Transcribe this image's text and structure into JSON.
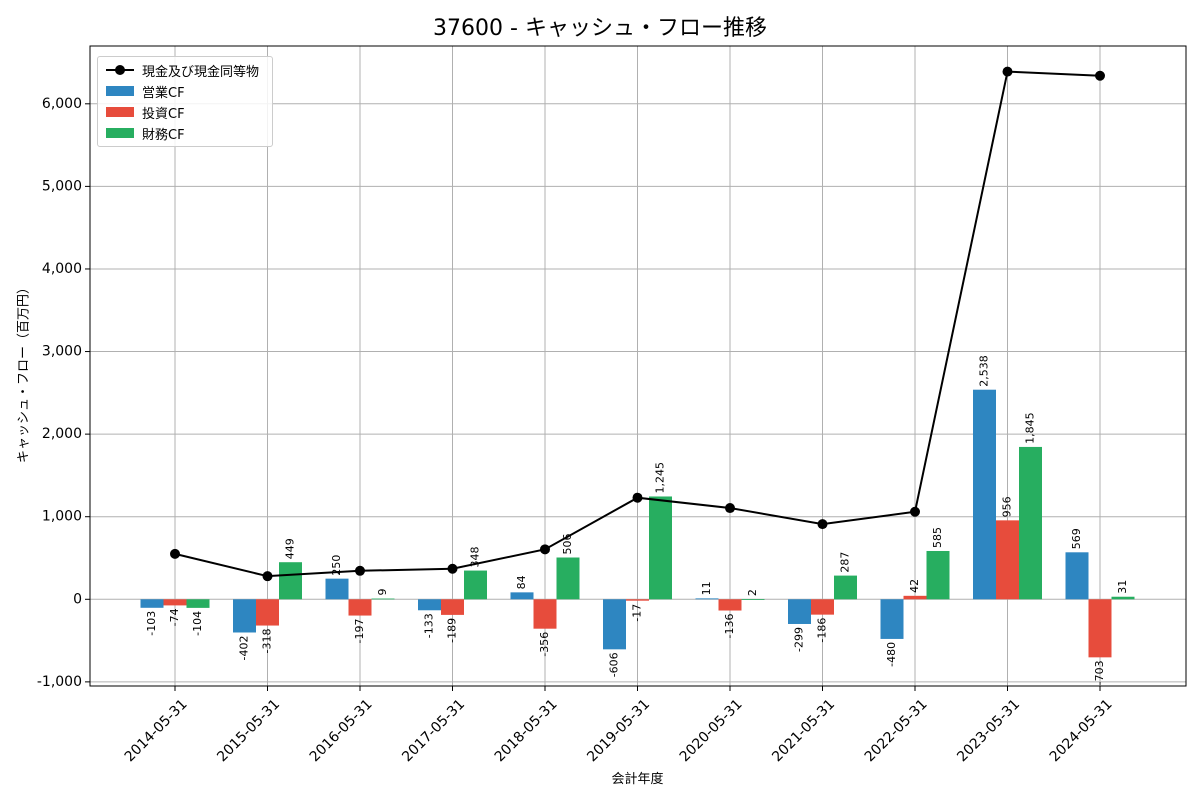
{
  "chart_data": {
    "type": "bar",
    "title": "37600 - キャッシュ・フロー推移",
    "xlabel": "会計年度",
    "ylabel": "キャッシュ・フロー（百万円）",
    "categories": [
      "2014-05-31",
      "2015-05-31",
      "2016-05-31",
      "2017-05-31",
      "2018-05-31",
      "2019-05-31",
      "2020-05-31",
      "2021-05-31",
      "2022-05-31",
      "2023-05-31",
      "2024-05-31"
    ],
    "ylim": [
      -1050,
      6700
    ],
    "yticks": [
      -1000,
      0,
      1000,
      2000,
      3000,
      4000,
      5000,
      6000
    ],
    "ytick_labels": [
      "-1,000",
      "0",
      "1,000",
      "2,000",
      "3,000",
      "4,000",
      "5,000",
      "6,000"
    ],
    "grid": true,
    "legend_position": "top-left",
    "series": [
      {
        "name": "営業CF",
        "kind": "bar",
        "color": "#2e86c1",
        "values": [
          -103,
          -402,
          250,
          -133,
          84,
          -606,
          11,
          -299,
          -480,
          2538,
          569
        ],
        "labels": [
          "-103",
          "-402",
          "250",
          "-133",
          "84",
          "-606",
          "11",
          "-299",
          "-480",
          "2,538",
          "569"
        ]
      },
      {
        "name": "投資CF",
        "kind": "bar",
        "color": "#e74c3c",
        "values": [
          -74,
          -318,
          -197,
          -189,
          -356,
          -17,
          -136,
          -186,
          42,
          956,
          -703
        ],
        "labels": [
          "-74",
          "-318",
          "-197",
          "-189",
          "-356",
          "-17",
          "-136",
          "-186",
          "42",
          "956",
          "-703"
        ]
      },
      {
        "name": "財務CF",
        "kind": "bar",
        "color": "#27ae60",
        "values": [
          -104,
          449,
          9,
          348,
          506,
          1245,
          2,
          287,
          585,
          1845,
          31
        ],
        "labels": [
          "-104",
          "449",
          "9",
          "348",
          "506",
          "1,245",
          "2",
          "287",
          "585",
          "1,845",
          "31"
        ]
      },
      {
        "name": "現金及び現金同等物",
        "kind": "line",
        "color": "#000000",
        "values": [
          550,
          280,
          345,
          370,
          605,
          1230,
          1105,
          910,
          1060,
          6390,
          6340
        ]
      }
    ]
  }
}
